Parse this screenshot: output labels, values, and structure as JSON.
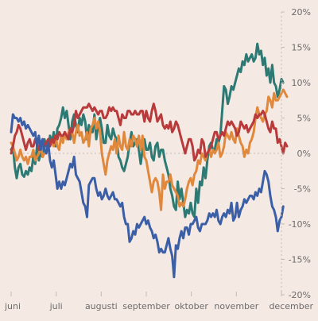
{
  "chart_data": {
    "type": "line",
    "title": "",
    "xlabel": "",
    "ylabel": "",
    "ylim": [
      -20,
      20
    ],
    "grid": "horizontal-zero-line-only",
    "legend": "none",
    "x_ticks": [
      "juni",
      "juli",
      "augusti",
      "september",
      "oktober",
      "november",
      "december"
    ],
    "y_ticks": [
      "20%",
      "15%",
      "10%",
      "5%",
      "0%",
      "-5%",
      "-10%",
      "-15%",
      "-20%"
    ],
    "y_tick_values": [
      20,
      15,
      10,
      5,
      0,
      -5,
      -10,
      -15,
      -20
    ],
    "x_domain": [
      0,
      146
    ],
    "series": [
      {
        "color": "#2c7a73",
        "values": [
          0.5,
          1.0,
          -2.0,
          -3.5,
          -2.0,
          -1.5,
          -3.0,
          -3.3,
          -2.5,
          -3.0,
          -2.0,
          -2.5,
          -0.5,
          -1.5,
          1.0,
          -1.0,
          0,
          -0.5,
          2.0,
          1.0,
          0.5,
          2.5,
          1.5,
          3.0,
          1.0,
          3.5,
          4.0,
          5.0,
          6.5,
          5.0,
          6.0,
          4.0,
          2.0,
          4.5,
          5.5,
          4.0,
          3.0,
          5.0,
          4.0,
          5.5,
          4.5,
          2.0,
          4.0,
          3.0,
          3.0,
          5.5,
          2.0,
          4.0,
          5.0,
          3.5,
          1.5,
          1.5,
          4.0,
          2.5,
          2.0,
          3.5,
          2.5,
          2.0,
          -0.5,
          -1.0,
          -2.0,
          -2.5,
          -1.5,
          -0.5,
          1.5,
          3.0,
          1.0,
          1.5,
          2.0,
          0.5,
          -1.5,
          0.5,
          2.0,
          0.5,
          0.5,
          1.5,
          -0.5,
          -1.0,
          1.0,
          1.5,
          -0.5,
          0.5,
          0.5,
          -1.0,
          -2.0,
          -3.0,
          -5.0,
          -6.0,
          -7.5,
          -8.0,
          -4.0,
          -6.5,
          -5.0,
          -7.0,
          -9.0,
          -8.0,
          -8.5,
          -7.0,
          -8.5,
          -9.0,
          -5.0,
          -7.0,
          -4.0,
          -4.5,
          -2.0,
          -3.5,
          -1.0,
          1.0,
          1.5,
          0.5,
          0.5,
          2.0,
          1.5,
          2.5,
          6.0,
          9.5,
          9.0,
          7.0,
          8.0,
          9.5,
          9.0,
          10.0,
          11.0,
          12.0,
          11.5,
          13.0,
          12.5,
          14.0,
          13.0,
          13.5,
          14.0,
          13.0,
          13.5,
          15.5,
          14.0,
          14.5,
          12.5,
          13.5,
          11.0,
          12.0,
          10.0,
          12.5,
          10.0,
          9.5,
          8.0,
          9.0,
          10.5,
          10.0
        ]
      },
      {
        "color": "#e0883c",
        "values": [
          1.5,
          1.0,
          0,
          -1.0,
          -0.5,
          0.5,
          -0.5,
          -1.0,
          -0.5,
          -1.5,
          -0.5,
          -0.5,
          0.5,
          -1.0,
          -0.5,
          0,
          1.0,
          -0.5,
          0,
          0.5,
          1.0,
          1.5,
          1.5,
          1.0,
          2.5,
          1.0,
          0.5,
          2.5,
          1.5,
          3.0,
          2.0,
          3.0,
          3.5,
          3.0,
          1.5,
          3.0,
          4.0,
          2.5,
          3.0,
          1.5,
          2.0,
          3.0,
          1.0,
          3.5,
          4.0,
          5.0,
          3.5,
          4.5,
          3.0,
          0,
          -1.5,
          -3.0,
          -1.0,
          0,
          1.0,
          0.5,
          2.0,
          0,
          2.5,
          1.0,
          0.5,
          3.0,
          1.0,
          0.5,
          2.0,
          1.0,
          2.5,
          2.0,
          1.0,
          2.5,
          0.5,
          2.5,
          -0.5,
          -1.0,
          -2.5,
          -4.0,
          -5.5,
          -4.0,
          -3.5,
          -4.0,
          -5.5,
          -8.0,
          -3.0,
          -5.0,
          -4.0,
          -4.0,
          -3.0,
          -4.5,
          -5.0,
          -5.5,
          -6.0,
          -7.5,
          -7.0,
          -7.5,
          -6.5,
          -5.0,
          -4.0,
          -3.5,
          -4.5,
          -3.0,
          -2.5,
          -1.0,
          -1.5,
          0,
          -0.5,
          -1.0,
          0,
          0.5,
          -0.5,
          0.5,
          0,
          0.5,
          1.5,
          -0.5,
          0,
          1.0,
          3.0,
          2.5,
          2.0,
          3.0,
          2.0,
          1.5,
          3.5,
          2.5,
          1.5,
          1.0,
          -0.5,
          0.5,
          0,
          1.5,
          2.0,
          3.0,
          5.0,
          6.5,
          5.5,
          5.0,
          4.5,
          5.5,
          6.0,
          8.0,
          7.5,
          6.5,
          8.5,
          7.5,
          7.5,
          8.0,
          8.5,
          9.0,
          8.5,
          8.0
        ]
      },
      {
        "color": "#b83a3a",
        "values": [
          0,
          1.0,
          2.5,
          3.0,
          4.0,
          3.5,
          2.5,
          1.5,
          0.5,
          1.5,
          2.0,
          1.0,
          1.0,
          2.0,
          1.5,
          0.5,
          1.5,
          2.0,
          1.0,
          1.5,
          2.0,
          1.0,
          2.0,
          1.5,
          2.5,
          2.0,
          3.0,
          2.5,
          2.5,
          3.0,
          2.5,
          2.0,
          3.5,
          3.0,
          4.0,
          6.0,
          5.0,
          5.5,
          6.0,
          6.5,
          6.5,
          6.5,
          7.0,
          6.5,
          6.0,
          6.5,
          6.0,
          5.5,
          6.0,
          6.0,
          5.0,
          5.0,
          5.5,
          6.5,
          6.0,
          6.5,
          6.0,
          6.0,
          5.0,
          4.0,
          5.5,
          5.0,
          5.0,
          6.0,
          6.0,
          5.5,
          5.5,
          6.0,
          5.5,
          5.5,
          6.0,
          6.0,
          4.5,
          6.0,
          5.0,
          4.5,
          6.0,
          7.0,
          6.0,
          4.5,
          5.0,
          5.5,
          4.0,
          3.5,
          4.0,
          3.5,
          4.5,
          3.0,
          3.5,
          4.5,
          4.0,
          3.0,
          2.0,
          1.0,
          0,
          1.0,
          2.0,
          2.0,
          1.0,
          -1.0,
          -0.5,
          0.5,
          0,
          2.0,
          1.5,
          -0.5,
          0,
          0.5,
          1.0,
          2.0,
          3.0,
          3.0,
          2.0,
          2.5,
          3.0,
          2.5,
          3.5,
          4.5,
          4.0,
          4.5,
          4.0,
          3.5,
          2.5,
          3.0,
          4.5,
          4.0,
          3.5,
          4.0,
          3.0,
          3.5,
          4.0,
          4.5,
          5.5,
          5.0,
          5.5,
          5.5,
          6.0,
          5.5,
          4.5,
          3.5,
          3.0,
          4.5,
          3.5,
          3.5,
          1.5,
          2.0,
          1.0,
          0,
          1.5,
          1.0
        ]
      },
      {
        "color": "#3b5fa6",
        "values": [
          3.0,
          5.5,
          5.0,
          5.0,
          4.5,
          5.0,
          4.0,
          4.5,
          3.5,
          4.0,
          3.5,
          3.0,
          2.5,
          3.0,
          1.0,
          2.5,
          0.5,
          2.0,
          0.5,
          0,
          1.5,
          -1.0,
          -2.0,
          -1.0,
          -3.0,
          -5.0,
          -4.0,
          -5.0,
          -4.0,
          -4.5,
          -3.5,
          -2.5,
          -1.5,
          -2.0,
          -0.5,
          -3.0,
          -3.5,
          -4.0,
          -5.5,
          -7.0,
          -7.5,
          -9.0,
          -4.5,
          -4.0,
          -3.5,
          -3.5,
          -5.0,
          -6.0,
          -5.5,
          -6.5,
          -6.0,
          -5.0,
          -6.0,
          -6.5,
          -6.0,
          -5.5,
          -6.5,
          -6.5,
          -7.0,
          -7.5,
          -7.0,
          -9.0,
          -10.0,
          -10.0,
          -12.5,
          -12.0,
          -11.0,
          -11.5,
          -10.0,
          -10.5,
          -10.0,
          -9.5,
          -9.0,
          -10.0,
          -9.5,
          -10.5,
          -11.0,
          -12.0,
          -11.5,
          -12.5,
          -14.0,
          -13.5,
          -14.0,
          -14.0,
          -13.0,
          -12.0,
          -13.5,
          -14.5,
          -17.5,
          -13.0,
          -13.5,
          -12.0,
          -11.0,
          -12.0,
          -10.5,
          -10.5,
          -11.5,
          -10.0,
          -10.0,
          -9.5,
          -9.0,
          -10.5,
          -11.0,
          -10.0,
          -10.0,
          -10.0,
          -9.5,
          -8.5,
          -9.0,
          -8.5,
          -9.0,
          -8.0,
          -9.5,
          -10.0,
          -9.0,
          -8.5,
          -9.0,
          -8.0,
          -8.5,
          -7.0,
          -9.5,
          -9.0,
          -7.0,
          -9.0,
          -8.0,
          -7.5,
          -6.5,
          -7.0,
          -6.5,
          -6.0,
          -6.0,
          -6.5,
          -5.5,
          -6.0,
          -5.0,
          -5.5,
          -4.0,
          -2.5,
          -3.0,
          -4.0,
          -6.0,
          -7.5,
          -8.0,
          -9.0,
          -11.0,
          -9.5,
          -9.0,
          -7.5
        ]
      }
    ]
  }
}
